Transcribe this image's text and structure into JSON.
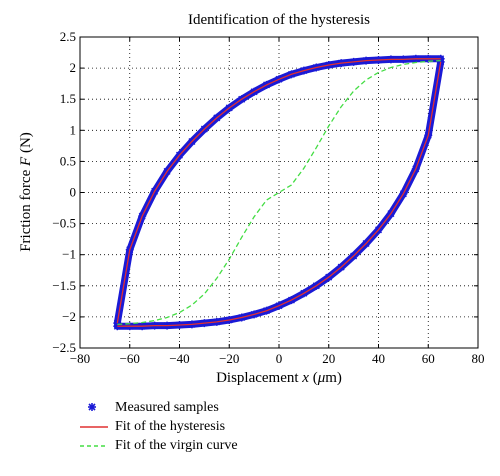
{
  "chart_data": {
    "type": "scatter",
    "title": "Identification of the hysteresis",
    "xlabel_prefix": "Displacement ",
    "xlabel_var": "x",
    "xlabel_unit_open": " (",
    "xlabel_mu": "μ",
    "xlabel_unit_close": "m)",
    "ylabel_prefix": "Friction force ",
    "ylabel_var": "F",
    "ylabel_unit": " (N)",
    "xlim": [
      -80,
      80
    ],
    "ylim": [
      -2.5,
      2.5
    ],
    "xticks": [
      -80,
      -60,
      -40,
      -20,
      0,
      20,
      40,
      60,
      80
    ],
    "yticks": [
      -2.5,
      -2,
      -1.5,
      -1,
      -0.5,
      0,
      0.5,
      1,
      1.5,
      2,
      2.5
    ],
    "xtick_labels": [
      "−80",
      "−60",
      "−40",
      "−20",
      "0",
      "20",
      "40",
      "60",
      "80"
    ],
    "ytick_labels": [
      "−2.5",
      "−2",
      "−1.5",
      "−1",
      "−0.5",
      "0",
      "0.5",
      "1",
      "1.5",
      "2",
      "2.5"
    ],
    "grid": "dotted",
    "legend_position": "below",
    "series": [
      {
        "name": "Measured samples",
        "style": "marker",
        "color": "#1a1ad6",
        "upper_branch": {
          "x": [
            -65,
            -60,
            -55,
            -50,
            -45,
            -40,
            -35,
            -30,
            -25,
            -20,
            -15,
            -10,
            -5,
            0,
            5,
            10,
            15,
            20,
            25,
            30,
            35,
            40,
            45,
            50,
            55,
            60,
            65
          ],
          "y": [
            -2.1,
            -0.92,
            -0.38,
            0.02,
            0.34,
            0.6,
            0.82,
            1.02,
            1.2,
            1.36,
            1.5,
            1.62,
            1.73,
            1.82,
            1.9,
            1.96,
            2.01,
            2.05,
            2.08,
            2.1,
            2.12,
            2.13,
            2.14,
            2.14,
            2.15,
            2.15,
            2.15
          ]
        },
        "lower_branch": {
          "x": [
            65,
            60,
            55,
            50,
            45,
            40,
            35,
            30,
            25,
            20,
            15,
            10,
            5,
            0,
            -5,
            -10,
            -15,
            -20,
            -25,
            -30,
            -35,
            -40,
            -45,
            -50,
            -55,
            -60,
            -65
          ],
          "y": [
            2.1,
            0.92,
            0.38,
            -0.02,
            -0.34,
            -0.6,
            -0.82,
            -1.02,
            -1.2,
            -1.36,
            -1.5,
            -1.62,
            -1.73,
            -1.82,
            -1.9,
            -1.96,
            -2.01,
            -2.05,
            -2.08,
            -2.1,
            -2.12,
            -2.13,
            -2.14,
            -2.14,
            -2.15,
            -2.15,
            -2.15
          ]
        }
      },
      {
        "name": "Fit of the hysteresis",
        "style": "solid",
        "color": "#e03030",
        "upper_branch": {
          "x": [
            -65,
            -60,
            -55,
            -50,
            -45,
            -40,
            -35,
            -30,
            -25,
            -20,
            -15,
            -10,
            -5,
            0,
            5,
            10,
            15,
            20,
            25,
            30,
            35,
            40,
            45,
            50,
            55,
            60,
            65
          ],
          "y": [
            -2.1,
            -0.92,
            -0.38,
            0.02,
            0.34,
            0.6,
            0.82,
            1.02,
            1.2,
            1.36,
            1.5,
            1.62,
            1.73,
            1.82,
            1.9,
            1.96,
            2.01,
            2.05,
            2.08,
            2.1,
            2.12,
            2.13,
            2.14,
            2.14,
            2.15,
            2.15,
            2.15
          ]
        },
        "lower_branch": {
          "x": [
            65,
            60,
            55,
            50,
            45,
            40,
            35,
            30,
            25,
            20,
            15,
            10,
            5,
            0,
            -5,
            -10,
            -15,
            -20,
            -25,
            -30,
            -35,
            -40,
            -45,
            -50,
            -55,
            -60,
            -65
          ],
          "y": [
            2.1,
            0.92,
            0.38,
            -0.02,
            -0.34,
            -0.6,
            -0.82,
            -1.02,
            -1.2,
            -1.36,
            -1.5,
            -1.62,
            -1.73,
            -1.82,
            -1.9,
            -1.96,
            -2.01,
            -2.05,
            -2.08,
            -2.1,
            -2.12,
            -2.13,
            -2.14,
            -2.14,
            -2.15,
            -2.15,
            -2.15
          ]
        }
      },
      {
        "name": "Fit of the virgin curve",
        "style": "dashed",
        "color": "#44dd44",
        "x": [
          -65,
          -60,
          -55,
          -50,
          -45,
          -40,
          -35,
          -30,
          -25,
          -20,
          -15,
          -10,
          -5,
          0,
          5,
          10,
          15,
          20,
          25,
          30,
          35,
          40,
          45,
          50,
          55,
          60,
          65
        ],
        "y": [
          -2.12,
          -2.11,
          -2.09,
          -2.06,
          -2.01,
          -1.93,
          -1.81,
          -1.63,
          -1.38,
          -1.07,
          -0.72,
          -0.39,
          -0.12,
          0.0,
          0.12,
          0.39,
          0.72,
          1.07,
          1.38,
          1.63,
          1.81,
          1.93,
          2.01,
          2.06,
          2.09,
          2.11,
          2.12
        ]
      }
    ]
  }
}
